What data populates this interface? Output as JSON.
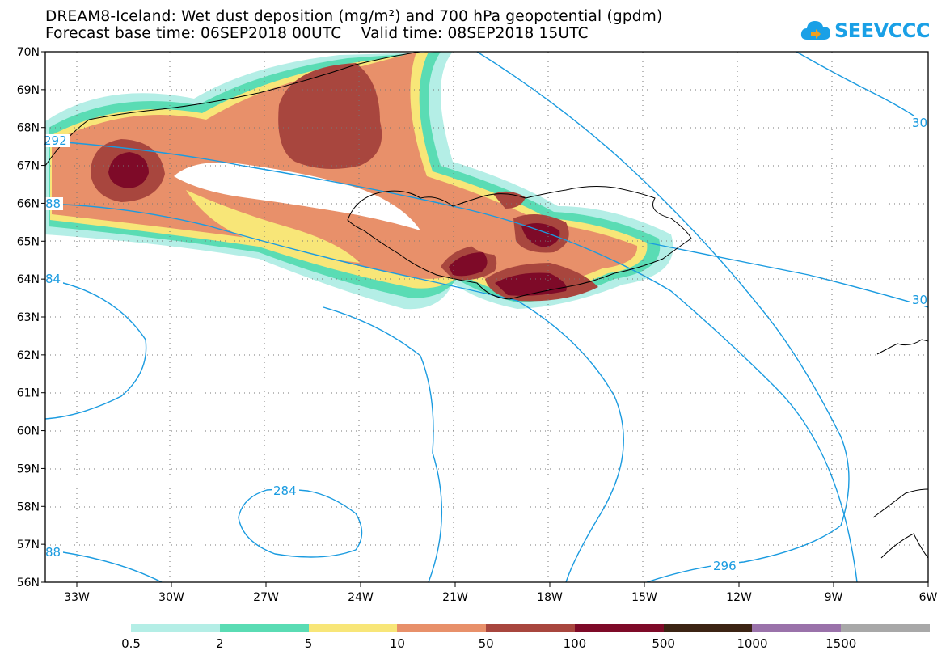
{
  "title": {
    "line1": "DREAM8-Iceland: Wet dust deposition (mg/m²) and 700 hPa geopotential (gpdm)",
    "line2": "Forecast base time: 06SEP2018 00UTC    Valid time: 08SEP2018 15UTC"
  },
  "logo": {
    "text": "SEEVCCC",
    "icon": "cloud-icon",
    "color": "#1aa0e6"
  },
  "map": {
    "lon_range": [
      -34,
      -6
    ],
    "lat_range": [
      56,
      70
    ],
    "lon_ticks": [
      "33W",
      "30W",
      "27W",
      "24W",
      "21W",
      "18W",
      "15W",
      "12W",
      "9W",
      "6W"
    ],
    "lat_ticks": [
      "70N",
      "69N",
      "68N",
      "67N",
      "66N",
      "65N",
      "64N",
      "63N",
      "62N",
      "61N",
      "60N",
      "59N",
      "58N",
      "57N",
      "56N"
    ],
    "contour_color": "#1a9be0",
    "contour_labels": [
      "292",
      "88",
      "84",
      "284",
      "88",
      "296",
      "30",
      "30"
    ]
  },
  "legend": {
    "colors": [
      "#b4eee6",
      "#5adcb4",
      "#f8e678",
      "#e8906a",
      "#a8463e",
      "#7e0a28",
      "#3c2414",
      "#9a72aa",
      "#a8a8a8"
    ],
    "labels": [
      "0.5",
      "2",
      "5",
      "10",
      "50",
      "100",
      "500",
      "1000",
      "1500"
    ]
  }
}
